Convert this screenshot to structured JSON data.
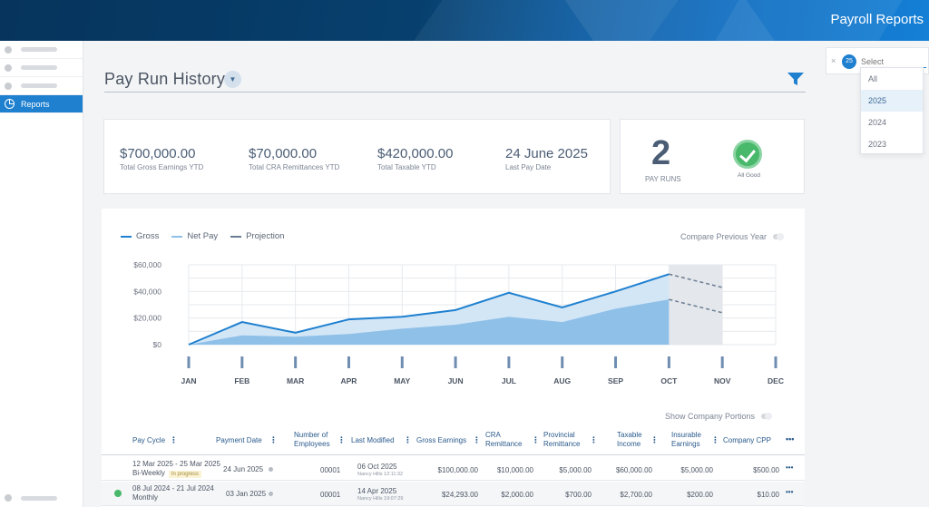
{
  "app": {
    "title": "Payroll Reports"
  },
  "sidebar": {
    "active_label": "Reports"
  },
  "header": {
    "title": "Pay Run History"
  },
  "year_filter": {
    "count": "25",
    "placeholder": "Select",
    "options": [
      "All",
      "2025",
      "2024",
      "2023"
    ],
    "selected": "2025"
  },
  "summary": {
    "stats": [
      {
        "value": "$700,000.00",
        "label": "Total Gross Earnings YTD"
      },
      {
        "value": "$70,000.00",
        "label": "Total CRA Remittances YTD"
      },
      {
        "value": "$420,000.00",
        "label": "Total Taxable YTD"
      },
      {
        "value": "24 June 2025",
        "label": "Last Pay Date"
      }
    ],
    "pay_runs_count": "2",
    "pay_runs_label": "PAY RUNS",
    "status_label": "All Good"
  },
  "chart_controls": {
    "compare_label": "Compare Previous Year",
    "company_portions_label": "Show Company Portions"
  },
  "colors": {
    "accent": "#1f80cf",
    "gross": "#1f80cf",
    "net": "#8fc0e8"
  },
  "chart_data": {
    "type": "area",
    "title": "",
    "categories": [
      "JAN",
      "FEB",
      "MAR",
      "APR",
      "MAY",
      "JUN",
      "JUL",
      "AUG",
      "SEP",
      "OCT",
      "NOV",
      "DEC"
    ],
    "ylim": [
      0,
      60000
    ],
    "yticks": [
      0,
      20000,
      40000,
      60000
    ],
    "ytick_labels": [
      "$0",
      "$20,000",
      "$40,000",
      "$60,000"
    ],
    "series": [
      {
        "name": "Gross",
        "style": "solid",
        "values": [
          0,
          17000,
          9000,
          19000,
          21000,
          26000,
          39000,
          28000,
          40000,
          53000,
          null,
          null
        ]
      },
      {
        "name": "Net Pay",
        "style": "solid",
        "values": [
          0,
          7000,
          6000,
          8000,
          12000,
          15000,
          21000,
          17000,
          27000,
          34000,
          null,
          null
        ]
      },
      {
        "name": "Projection",
        "style": "dashed",
        "gross_values": [
          null,
          null,
          null,
          null,
          null,
          null,
          null,
          null,
          null,
          53000,
          43000,
          null
        ],
        "net_values": [
          null,
          null,
          null,
          null,
          null,
          null,
          null,
          null,
          null,
          34000,
          24000,
          null
        ]
      }
    ],
    "grid": true
  },
  "table": {
    "columns": [
      "Pay Cycle",
      "Payment Date",
      "Number of Employees",
      "Last Modified",
      "Gross Earnings",
      "CRA Remittance",
      "Provincial Remittance",
      "Taxable Income",
      "Insurable Earnings",
      "Company CPP"
    ],
    "rows": [
      {
        "pay_cycle": "12 Mar 2025 - 25 Mar 2025",
        "frequency": "Bi-Weekly",
        "status": "In progress",
        "payment_date": "24 Jun 2025",
        "employees": "00001",
        "last_modified": "06 Oct 2025",
        "modified_by": "Nancy Hills 12:11:32",
        "gross": "$100,000.00",
        "cra": "$10,000.00",
        "provincial": "$5,000.00",
        "taxable": "$60,000.00",
        "insurable": "$5,000.00",
        "cpp": "$500.00"
      },
      {
        "pay_cycle": "08 Jul 2024 - 21 Jul 2024",
        "frequency": "Monthly",
        "status": "",
        "payment_date": "03 Jan 2025",
        "employees": "00001",
        "last_modified": "14 Apr 2025",
        "modified_by": "Nancy Hills 19:07:29",
        "gross": "$24,293.00",
        "cra": "$2,000.00",
        "provincial": "$700.00",
        "taxable": "$2,700.00",
        "insurable": "$200.00",
        "cpp": "$10.00"
      }
    ]
  }
}
